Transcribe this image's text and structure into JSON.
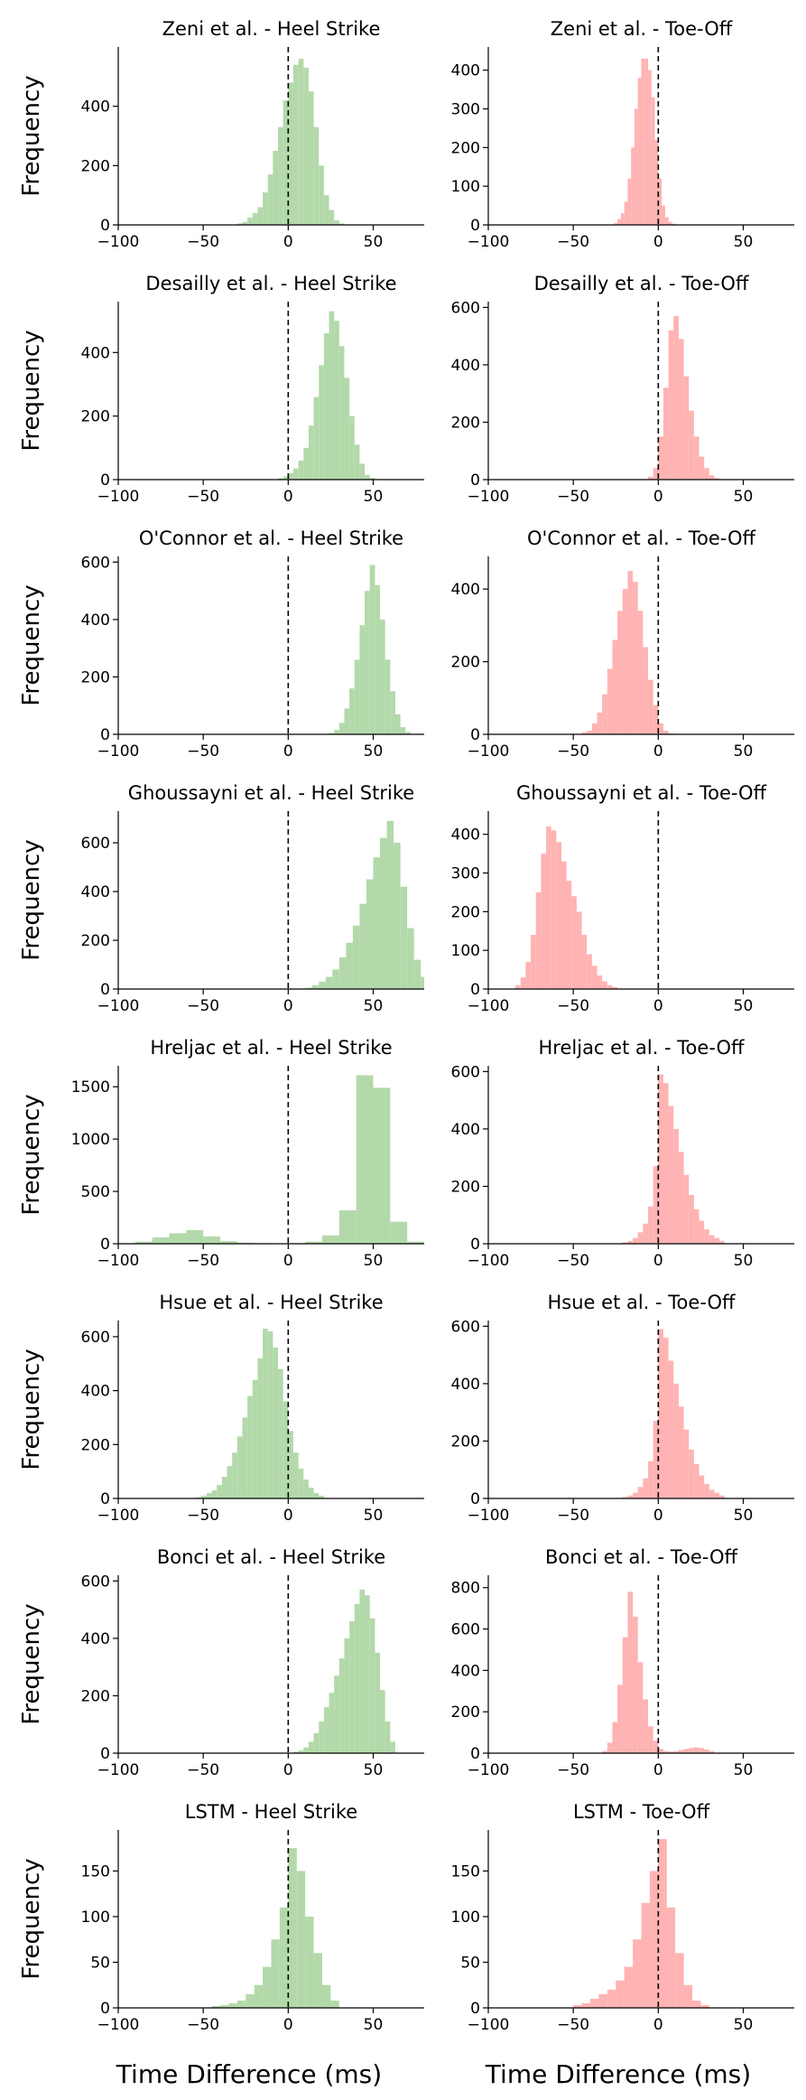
{
  "figure": {
    "xlabel": "Time Difference (ms)",
    "ylabel": "Frequency",
    "hs_color": "#b3d9aa",
    "to_color": "#ffb3b3"
  },
  "chart_data": [
    {
      "type": "bar",
      "title": "Zeni et al. - Heel Strike",
      "method": "Zeni et al.",
      "event": "Heel Strike",
      "xlabel": "Time Difference (ms)",
      "ylabel": "Frequency",
      "xlim": [
        -100,
        80
      ],
      "ylim": [
        0,
        600
      ],
      "xticks": [
        -100,
        -50,
        0,
        50
      ],
      "yticks": [
        0,
        200,
        400
      ],
      "reference_line_x": 0,
      "bins": [
        -30,
        -27,
        -24,
        -21,
        -18,
        -15,
        -12,
        -9,
        -6,
        -3,
        0,
        3,
        6,
        9,
        12,
        15,
        18,
        21,
        24,
        27,
        30
      ],
      "values": [
        5,
        10,
        25,
        40,
        60,
        110,
        170,
        250,
        330,
        420,
        480,
        540,
        560,
        530,
        450,
        330,
        200,
        100,
        50,
        15,
        5
      ]
    },
    {
      "type": "bar",
      "title": "Zeni et al. - Toe-Off",
      "method": "Zeni et al.",
      "event": "Toe-Off",
      "xlabel": "Time Difference (ms)",
      "ylabel": "Frequency",
      "xlim": [
        -100,
        80
      ],
      "ylim": [
        0,
        460
      ],
      "xticks": [
        -100,
        -50,
        0,
        50
      ],
      "yticks": [
        0,
        100,
        200,
        300,
        400
      ],
      "reference_line_x": 0,
      "bins": [
        -26,
        -24,
        -22,
        -20,
        -18,
        -16,
        -14,
        -12,
        -10,
        -8,
        -6,
        -4,
        -2,
        0,
        2,
        4,
        6,
        8
      ],
      "values": [
        5,
        15,
        30,
        60,
        120,
        200,
        300,
        380,
        430,
        430,
        400,
        330,
        220,
        120,
        50,
        20,
        8,
        3
      ]
    },
    {
      "type": "bar",
      "title": "Desailly et al. - Heel Strike",
      "method": "Desailly et al.",
      "event": "Heel Strike",
      "xlabel": "Time Difference (ms)",
      "ylabel": "Frequency",
      "xlim": [
        -100,
        80
      ],
      "ylim": [
        0,
        560
      ],
      "xticks": [
        -100,
        -50,
        0,
        50
      ],
      "yticks": [
        0,
        200,
        400
      ],
      "reference_line_x": 0,
      "bins": [
        -6,
        -3,
        0,
        3,
        6,
        9,
        12,
        15,
        18,
        21,
        24,
        27,
        30,
        33,
        36,
        39,
        42,
        45,
        48
      ],
      "values": [
        5,
        10,
        20,
        35,
        60,
        100,
        170,
        260,
        360,
        460,
        530,
        500,
        420,
        320,
        200,
        110,
        50,
        15,
        5
      ]
    },
    {
      "type": "bar",
      "title": "Desailly et al. - Toe-Off",
      "method": "Desailly et al.",
      "event": "Toe-Off",
      "xlabel": "Time Difference (ms)",
      "ylabel": "Frequency",
      "xlim": [
        -100,
        80
      ],
      "ylim": [
        0,
        620
      ],
      "xticks": [
        -100,
        -50,
        0,
        50
      ],
      "yticks": [
        0,
        200,
        400,
        600
      ],
      "reference_line_x": 0,
      "bins": [
        -6,
        -3,
        0,
        3,
        6,
        9,
        12,
        15,
        18,
        21,
        24,
        27,
        30,
        33
      ],
      "values": [
        10,
        40,
        150,
        320,
        520,
        570,
        490,
        360,
        240,
        150,
        80,
        40,
        15,
        5
      ]
    },
    {
      "type": "bar",
      "title": "O'Connor et al. - Heel Strike",
      "method": "O'Connor et al.",
      "event": "Heel Strike",
      "xlabel": "Time Difference (ms)",
      "ylabel": "Frequency",
      "xlim": [
        -100,
        80
      ],
      "ylim": [
        0,
        620
      ],
      "xticks": [
        -100,
        -50,
        0,
        50
      ],
      "yticks": [
        0,
        200,
        400,
        600
      ],
      "reference_line_x": 0,
      "bins": [
        24,
        27,
        30,
        33,
        36,
        39,
        42,
        45,
        48,
        51,
        54,
        57,
        60,
        63,
        66,
        69
      ],
      "values": [
        5,
        15,
        40,
        90,
        160,
        260,
        380,
        500,
        590,
        520,
        400,
        260,
        150,
        70,
        25,
        8
      ]
    },
    {
      "type": "bar",
      "title": "O'Connor et al. - Toe-Off",
      "method": "O'Connor et al.",
      "event": "Toe-Off",
      "xlabel": "Time Difference (ms)",
      "ylabel": "Frequency",
      "xlim": [
        -100,
        80
      ],
      "ylim": [
        0,
        490
      ],
      "xticks": [
        -100,
        -50,
        0,
        50
      ],
      "yticks": [
        0,
        200,
        400
      ],
      "reference_line_x": 0,
      "bins": [
        -45,
        -42,
        -39,
        -36,
        -33,
        -30,
        -27,
        -24,
        -21,
        -18,
        -15,
        -12,
        -9,
        -6,
        -3,
        0,
        3,
        6
      ],
      "values": [
        5,
        10,
        30,
        60,
        110,
        180,
        260,
        340,
        400,
        450,
        420,
        340,
        240,
        150,
        80,
        30,
        10,
        3
      ]
    },
    {
      "type": "bar",
      "title": "Ghoussayni et al. - Heel Strike",
      "method": "Ghoussayni et al.",
      "event": "Heel Strike",
      "xlabel": "Time Difference (ms)",
      "ylabel": "Frequency",
      "xlim": [
        -100,
        80
      ],
      "ylim": [
        0,
        730
      ],
      "xticks": [
        -100,
        -50,
        0,
        50
      ],
      "yticks": [
        0,
        200,
        400,
        600
      ],
      "reference_line_x": 0,
      "bins": [
        10,
        14,
        18,
        22,
        26,
        30,
        34,
        38,
        42,
        46,
        50,
        54,
        58,
        62,
        66,
        70,
        74,
        78
      ],
      "values": [
        5,
        15,
        30,
        50,
        80,
        130,
        190,
        260,
        350,
        450,
        540,
        620,
        690,
        600,
        420,
        250,
        120,
        50
      ]
    },
    {
      "type": "bar",
      "title": "Ghoussayni et al. - Toe-Off",
      "method": "Ghoussayni et al.",
      "event": "Toe-Off",
      "xlabel": "Time Difference (ms)",
      "ylabel": "Frequency",
      "xlim": [
        -100,
        80
      ],
      "ylim": [
        0,
        460
      ],
      "xticks": [
        -100,
        -50,
        0,
        50
      ],
      "yticks": [
        0,
        100,
        200,
        300,
        400
      ],
      "reference_line_x": 0,
      "bins": [
        -84,
        -81,
        -78,
        -75,
        -72,
        -69,
        -66,
        -63,
        -60,
        -57,
        -54,
        -51,
        -48,
        -45,
        -42,
        -39,
        -36,
        -33,
        -30,
        -27
      ],
      "values": [
        10,
        30,
        70,
        140,
        250,
        350,
        420,
        410,
        380,
        330,
        280,
        240,
        200,
        140,
        90,
        60,
        35,
        20,
        10,
        5
      ]
    },
    {
      "type": "bar",
      "title": "Hreljac et al. - Heel Strike",
      "method": "Hreljac et al.",
      "event": "Heel Strike",
      "xlabel": "Time Difference (ms)",
      "ylabel": "Frequency",
      "xlim": [
        -100,
        80
      ],
      "ylim": [
        0,
        1700
      ],
      "xticks": [
        -100,
        -50,
        0,
        50
      ],
      "yticks": [
        0,
        500,
        1000,
        1500
      ],
      "reference_line_x": 0,
      "bins": [
        -100,
        -90,
        -80,
        -70,
        -60,
        -50,
        -40,
        -30,
        -20,
        -10,
        0,
        10,
        20,
        30,
        40,
        50,
        60,
        70
      ],
      "values": [
        5,
        20,
        60,
        100,
        130,
        70,
        25,
        10,
        5,
        3,
        5,
        20,
        80,
        320,
        1610,
        1490,
        210,
        20
      ]
    },
    {
      "type": "bar",
      "title": "Hreljac et al. - Toe-Off",
      "method": "Hreljac et al.",
      "event": "Toe-Off",
      "xlabel": "Time Difference (ms)",
      "ylabel": "Frequency",
      "xlim": [
        -100,
        80
      ],
      "ylim": [
        0,
        620
      ],
      "xticks": [
        -100,
        -50,
        0,
        50
      ],
      "yticks": [
        0,
        200,
        400,
        600
      ],
      "reference_line_x": 0,
      "bins": [
        -21,
        -18,
        -15,
        -12,
        -9,
        -6,
        -3,
        0,
        3,
        6,
        9,
        12,
        15,
        18,
        21,
        24,
        27,
        30,
        33,
        36
      ],
      "values": [
        5,
        10,
        20,
        40,
        70,
        130,
        270,
        590,
        560,
        480,
        400,
        320,
        240,
        170,
        120,
        80,
        50,
        30,
        20,
        10
      ]
    },
    {
      "type": "bar",
      "title": "Hsue et al. - Heel Strike",
      "method": "Hsue et al.",
      "event": "Heel Strike",
      "xlabel": "Time Difference (ms)",
      "ylabel": "Frequency",
      "xlim": [
        -100,
        80
      ],
      "ylim": [
        0,
        660
      ],
      "xticks": [
        -100,
        -50,
        0,
        50
      ],
      "yticks": [
        0,
        200,
        400,
        600
      ],
      "reference_line_x": 0,
      "bins": [
        -54,
        -51,
        -48,
        -45,
        -42,
        -39,
        -36,
        -33,
        -30,
        -27,
        -24,
        -21,
        -18,
        -15,
        -12,
        -9,
        -6,
        -3,
        0,
        3,
        6,
        9,
        12,
        15,
        18
      ],
      "values": [
        5,
        10,
        20,
        30,
        50,
        80,
        120,
        170,
        230,
        300,
        380,
        440,
        520,
        630,
        620,
        560,
        480,
        360,
        250,
        170,
        110,
        70,
        40,
        20,
        10
      ]
    },
    {
      "type": "bar",
      "title": "Hsue et al. - Toe-Off",
      "method": "Hsue et al.",
      "event": "Toe-Off",
      "xlabel": "Time Difference (ms)",
      "ylabel": "Frequency",
      "xlim": [
        -100,
        80
      ],
      "ylim": [
        0,
        620
      ],
      "xticks": [
        -100,
        -50,
        0,
        50
      ],
      "yticks": [
        0,
        200,
        400,
        600
      ],
      "reference_line_x": 0,
      "bins": [
        -21,
        -18,
        -15,
        -12,
        -9,
        -6,
        -3,
        0,
        3,
        6,
        9,
        12,
        15,
        18,
        21,
        24,
        27,
        30,
        33,
        36
      ],
      "values": [
        5,
        10,
        20,
        40,
        70,
        130,
        270,
        590,
        560,
        480,
        400,
        320,
        240,
        170,
        120,
        80,
        50,
        30,
        20,
        10
      ]
    },
    {
      "type": "bar",
      "title": "Bonci et al. - Heel Strike",
      "method": "Bonci et al.",
      "event": "Heel Strike",
      "xlabel": "Time Difference (ms)",
      "ylabel": "Frequency",
      "xlim": [
        -100,
        80
      ],
      "ylim": [
        0,
        620
      ],
      "xticks": [
        -100,
        -50,
        0,
        50
      ],
      "yticks": [
        0,
        200,
        400,
        600
      ],
      "reference_line_x": 0,
      "bins": [
        3,
        6,
        9,
        12,
        15,
        18,
        21,
        24,
        27,
        30,
        33,
        36,
        39,
        42,
        45,
        48,
        51,
        54,
        57,
        60
      ],
      "values": [
        5,
        10,
        20,
        40,
        70,
        110,
        160,
        210,
        270,
        330,
        400,
        460,
        520,
        570,
        550,
        470,
        350,
        220,
        110,
        40
      ]
    },
    {
      "type": "bar",
      "title": "Bonci et al. - Toe-Off",
      "method": "Bonci et al.",
      "event": "Toe-Off",
      "xlabel": "Time Difference (ms)",
      "ylabel": "Frequency",
      "xlim": [
        -100,
        80
      ],
      "ylim": [
        0,
        860
      ],
      "xticks": [
        -100,
        -50,
        0,
        50
      ],
      "yticks": [
        0,
        200,
        400,
        600,
        800
      ],
      "reference_line_x": 0,
      "bins": [
        -33,
        -30,
        -27,
        -24,
        -21,
        -18,
        -15,
        -12,
        -9,
        -6,
        -3,
        0,
        3,
        6,
        9,
        12,
        15,
        18,
        21,
        24,
        27,
        30
      ],
      "values": [
        10,
        50,
        150,
        330,
        560,
        780,
        660,
        440,
        260,
        130,
        60,
        20,
        10,
        8,
        10,
        15,
        20,
        25,
        28,
        25,
        18,
        10
      ]
    },
    {
      "type": "bar",
      "title": "LSTM - Heel Strike",
      "method": "LSTM",
      "event": "Heel Strike",
      "xlabel": "Time Difference (ms)",
      "ylabel": "Frequency",
      "xlim": [
        -100,
        80
      ],
      "ylim": [
        0,
        195
      ],
      "xticks": [
        -100,
        -50,
        0,
        50
      ],
      "yticks": [
        0,
        50,
        100,
        150
      ],
      "reference_line_x": 0,
      "bins": [
        -45,
        -40,
        -35,
        -30,
        -25,
        -20,
        -15,
        -10,
        -5,
        0,
        5,
        10,
        15,
        20,
        25
      ],
      "values": [
        2,
        3,
        5,
        8,
        15,
        25,
        45,
        75,
        110,
        175,
        150,
        100,
        60,
        25,
        8
      ]
    },
    {
      "type": "bar",
      "title": "LSTM - Toe-Off",
      "method": "LSTM",
      "event": "Toe-Off",
      "xlabel": "Time Difference (ms)",
      "ylabel": "Frequency",
      "xlim": [
        -100,
        80
      ],
      "ylim": [
        0,
        195
      ],
      "xticks": [
        -100,
        -50,
        0,
        50
      ],
      "yticks": [
        0,
        50,
        100,
        150
      ],
      "reference_line_x": 0,
      "bins": [
        -50,
        -45,
        -40,
        -35,
        -30,
        -25,
        -20,
        -15,
        -10,
        -5,
        0,
        5,
        10,
        15,
        20,
        25
      ],
      "values": [
        3,
        5,
        10,
        15,
        20,
        30,
        45,
        75,
        115,
        150,
        185,
        110,
        60,
        25,
        8,
        3
      ]
    }
  ]
}
